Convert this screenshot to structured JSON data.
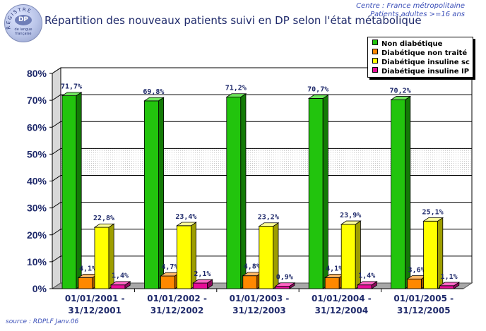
{
  "header": {
    "title": "Répartition des nouveaux patients suivi en DP selon l'état métabolique",
    "context_line1": "Centre : France métropolitaine",
    "context_line2": "Patients adultes >=16 ans"
  },
  "logo": {
    "ring_text": "REGISTRE",
    "center_text": "DP",
    "sub_line1": "de langue",
    "sub_line2": "française"
  },
  "footer": {
    "source": "source : RDPLF  Janv.06"
  },
  "colors": {
    "non_diabetique": "#22c40d",
    "diab_non_traite": "#ff8800",
    "diab_insuline_sc": "#ffff00",
    "diab_insuline_ip": "#e60d96",
    "axis_text": "#1f2a6b"
  },
  "chart_data": {
    "type": "bar",
    "title": "Répartition des nouveaux patients suivi en DP selon l'état métabolique",
    "xlabel": "",
    "ylabel": "",
    "ylim": [
      0,
      80
    ],
    "yticks": [
      "0%",
      "10%",
      "20%",
      "30%",
      "40%",
      "50%",
      "60%",
      "70%",
      "80%"
    ],
    "grid": true,
    "legend_position": "top-right",
    "categories": [
      [
        "01/01/2001 -",
        "31/12/2001"
      ],
      [
        "01/01/2002 -",
        "31/12/2002"
      ],
      [
        "01/01/2003 -",
        "31/12/2003"
      ],
      [
        "01/01/2004 -",
        "31/12/2004"
      ],
      [
        "01/01/2005 -",
        "31/12/2005"
      ]
    ],
    "series": [
      {
        "name": "Non diabétique",
        "values": [
          71.7,
          69.8,
          71.2,
          70.7,
          70.2
        ],
        "labels": [
          "71,7%",
          "69,8%",
          "71,2%",
          "70,7%",
          "70,2%"
        ]
      },
      {
        "name": "Diabétique non traité",
        "values": [
          4.1,
          4.7,
          4.8,
          4.1,
          3.6
        ],
        "labels": [
          "4,1%",
          "4,7%",
          "4,8%",
          "4,1%",
          "3,6%"
        ]
      },
      {
        "name": "Diabétique insuline sc",
        "values": [
          22.8,
          23.4,
          23.2,
          23.9,
          25.1
        ],
        "labels": [
          "22,8%",
          "23,4%",
          "23,2%",
          "23,9%",
          "25,1%"
        ]
      },
      {
        "name": "Diabétique insuline IP",
        "values": [
          1.4,
          2.1,
          0.9,
          1.4,
          1.1
        ],
        "labels": [
          "1,4%",
          "2,1%",
          "0,9%",
          "1,4%",
          "1,1%"
        ]
      }
    ]
  }
}
